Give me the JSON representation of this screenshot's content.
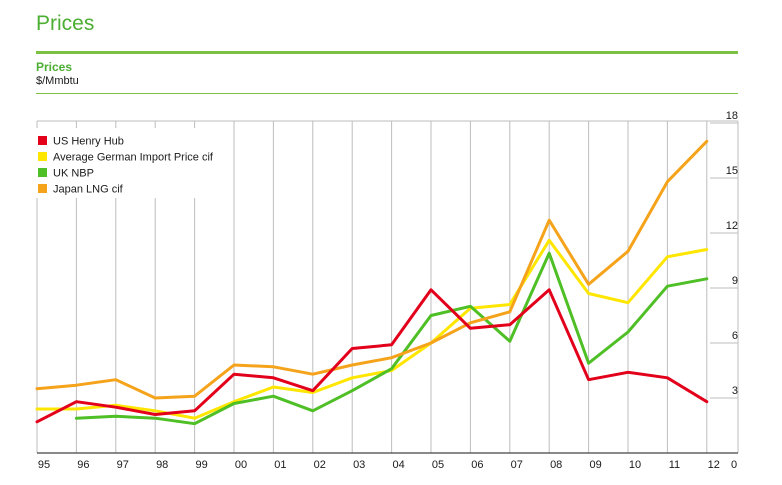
{
  "page": {
    "title": "Prices"
  },
  "chart_data": {
    "type": "line",
    "title": "Prices",
    "ylabel": "$/Mmbtu",
    "xlabel": "",
    "categories": [
      "95",
      "96",
      "97",
      "98",
      "99",
      "00",
      "01",
      "02",
      "03",
      "04",
      "05",
      "06",
      "07",
      "08",
      "09",
      "10",
      "11",
      "12"
    ],
    "x_axis_extra_label": "0",
    "y_ticks": [
      3,
      6,
      9,
      12,
      15,
      18
    ],
    "ylim": [
      0,
      18
    ],
    "grid": "vertical",
    "legend_position": "top-left",
    "series": [
      {
        "name": "US Henry Hub",
        "color": "#e2001a",
        "values": [
          1.7,
          2.8,
          2.5,
          2.1,
          2.3,
          4.3,
          4.1,
          3.4,
          5.7,
          5.9,
          8.9,
          6.8,
          7.0,
          8.9,
          4.0,
          4.4,
          4.1,
          2.8
        ]
      },
      {
        "name": "Average German Import Price cif",
        "color": "#ffe600",
        "values": [
          2.4,
          2.4,
          2.6,
          2.3,
          1.9,
          2.8,
          3.6,
          3.3,
          4.1,
          4.5,
          6.0,
          7.9,
          8.1,
          11.6,
          8.7,
          8.2,
          10.7,
          11.1
        ]
      },
      {
        "name": "UK NBP",
        "color": "#4fbf26",
        "values": [
          null,
          1.9,
          2.0,
          1.9,
          1.6,
          2.7,
          3.1,
          2.3,
          3.4,
          4.6,
          7.5,
          8.0,
          6.1,
          10.9,
          4.9,
          6.6,
          9.1,
          9.5
        ]
      },
      {
        "name": "Japan LNG cif",
        "color": "#f5a31a",
        "values": [
          3.5,
          3.7,
          4.0,
          3.0,
          3.1,
          4.8,
          4.7,
          4.3,
          4.8,
          5.2,
          6.0,
          7.1,
          7.7,
          12.7,
          9.2,
          11.0,
          14.8,
          17.0
        ]
      }
    ]
  }
}
